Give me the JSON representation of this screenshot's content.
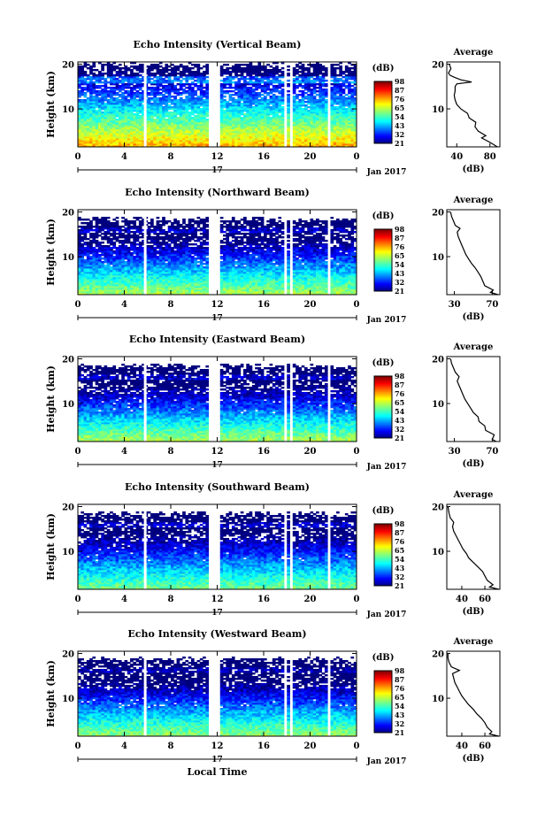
{
  "figure": {
    "date_label": "Jan 2017",
    "day_label": "17",
    "xlabel": "Local Time",
    "ylabel": "Height (km)",
    "colorbar_unit": "(dB)",
    "profile_title": "Average",
    "profile_xlabel": "(dB)"
  },
  "chart_data": [
    {
      "type": "heatmap",
      "title": "Echo Intensity (Vertical Beam)",
      "xlabel": "",
      "ylabel": "Height (km)",
      "x_ticks": [
        "0",
        "4",
        "8",
        "12",
        "16",
        "20",
        "0"
      ],
      "xlim_hours": [
        0,
        24
      ],
      "y_ticks": [
        "10",
        "20"
      ],
      "ylim_km": [
        1.5,
        20.5
      ],
      "colorbar_ticks": [
        "21",
        "32",
        "43",
        "54",
        "65",
        "76",
        "87",
        "98"
      ],
      "data_gaps_hours": [
        [
          11.3,
          12.3
        ],
        [
          17.7,
          18.0
        ],
        [
          18.3,
          18.5
        ],
        [
          21.6,
          21.8
        ]
      ],
      "thin_gaps_hours": [
        5.8
      ],
      "field": {
        "surface_db": 75,
        "decay_db_per_km": 3.5,
        "echo_top_km": 20,
        "layer_km": 16.5
      },
      "profile": {
        "x_ticks": [
          "40",
          "80"
        ],
        "xlim_db": [
          28,
          92
        ],
        "points": [
          [
            89,
            1.5
          ],
          [
            80,
            2.5
          ],
          [
            70,
            3.5
          ],
          [
            75,
            4
          ],
          [
            66,
            5
          ],
          [
            62,
            6
          ],
          [
            63,
            7
          ],
          [
            55,
            8
          ],
          [
            53,
            9
          ],
          [
            45,
            10
          ],
          [
            40,
            11
          ],
          [
            38,
            12
          ],
          [
            37,
            13
          ],
          [
            38,
            14
          ],
          [
            38,
            15
          ],
          [
            40,
            15.6
          ],
          [
            58,
            16
          ],
          [
            45,
            16.5
          ],
          [
            38,
            17
          ],
          [
            32,
            17.5
          ],
          [
            30,
            18
          ],
          [
            33,
            19
          ],
          [
            31,
            20
          ]
        ]
      }
    },
    {
      "type": "heatmap",
      "title": "Echo Intensity (Northward Beam)",
      "xlabel": "",
      "ylabel": "Height (km)",
      "x_ticks": [
        "0",
        "4",
        "8",
        "12",
        "16",
        "20",
        "0"
      ],
      "xlim_hours": [
        0,
        24
      ],
      "y_ticks": [
        "10",
        "20"
      ],
      "ylim_km": [
        1.5,
        20.5
      ],
      "colorbar_ticks": [
        "21",
        "32",
        "43",
        "54",
        "65",
        "76",
        "87",
        "98"
      ],
      "data_gaps_hours": [
        [
          11.3,
          12.3
        ],
        [
          17.7,
          18.0
        ],
        [
          18.3,
          18.5
        ],
        [
          21.6,
          21.8
        ]
      ],
      "thin_gaps_hours": [
        5.8
      ],
      "field": {
        "surface_db": 62,
        "decay_db_per_km": 3.6,
        "echo_top_km": 18.5,
        "layer_km": 16
      },
      "profile": {
        "x_ticks": [
          "30",
          "70"
        ],
        "xlim_db": [
          22,
          78
        ],
        "points": [
          [
            76,
            1.5
          ],
          [
            68,
            2
          ],
          [
            71,
            2.5
          ],
          [
            62,
            3.5
          ],
          [
            60,
            4.5
          ],
          [
            58,
            5.5
          ],
          [
            55,
            6.5
          ],
          [
            52,
            7.5
          ],
          [
            48,
            8.5
          ],
          [
            45,
            9.5
          ],
          [
            42,
            10.5
          ],
          [
            40,
            11.5
          ],
          [
            38,
            12.5
          ],
          [
            36,
            13.5
          ],
          [
            34,
            14.5
          ],
          [
            33,
            15.5
          ],
          [
            36,
            16.3
          ],
          [
            31,
            17
          ],
          [
            29,
            18
          ],
          [
            27,
            19
          ],
          [
            26,
            20
          ]
        ]
      }
    },
    {
      "type": "heatmap",
      "title": "Echo Intensity (Eastward Beam)",
      "xlabel": "",
      "ylabel": "Height (km)",
      "x_ticks": [
        "0",
        "4",
        "8",
        "12",
        "16",
        "20",
        "0"
      ],
      "xlim_hours": [
        0,
        24
      ],
      "y_ticks": [
        "10",
        "20"
      ],
      "ylim_km": [
        1.5,
        20.5
      ],
      "colorbar_ticks": [
        "21",
        "32",
        "43",
        "54",
        "65",
        "76",
        "87",
        "98"
      ],
      "data_gaps_hours": [
        [
          11.3,
          12.3
        ],
        [
          17.7,
          18.0
        ],
        [
          18.3,
          18.5
        ],
        [
          21.6,
          21.8
        ]
      ],
      "thin_gaps_hours": [
        5.8
      ],
      "field": {
        "surface_db": 62,
        "decay_db_per_km": 3.6,
        "echo_top_km": 18.5,
        "layer_km": 16
      },
      "profile": {
        "x_ticks": [
          "30",
          "70"
        ],
        "xlim_db": [
          22,
          78
        ],
        "points": [
          [
            74,
            1.5
          ],
          [
            70,
            2
          ],
          [
            72,
            3
          ],
          [
            63,
            4
          ],
          [
            62,
            5
          ],
          [
            56,
            6
          ],
          [
            55,
            7
          ],
          [
            50,
            8
          ],
          [
            47,
            9
          ],
          [
            44,
            10
          ],
          [
            41,
            11
          ],
          [
            39,
            12
          ],
          [
            37,
            13
          ],
          [
            35,
            14
          ],
          [
            33,
            15
          ],
          [
            35,
            16
          ],
          [
            31,
            17
          ],
          [
            29,
            18
          ],
          [
            27,
            19
          ],
          [
            26,
            20
          ]
        ]
      }
    },
    {
      "type": "heatmap",
      "title": "Echo Intensity (Southward Beam)",
      "xlabel": "",
      "ylabel": "Height (km)",
      "x_ticks": [
        "0",
        "4",
        "8",
        "12",
        "16",
        "20",
        "0"
      ],
      "xlim_hours": [
        0,
        24
      ],
      "y_ticks": [
        "10",
        "20"
      ],
      "ylim_km": [
        1.5,
        20.5
      ],
      "colorbar_ticks": [
        "21",
        "32",
        "43",
        "54",
        "65",
        "76",
        "87",
        "98"
      ],
      "data_gaps_hours": [
        [
          11.3,
          12.3
        ],
        [
          17.7,
          18.0
        ],
        [
          18.3,
          18.5
        ],
        [
          21.6,
          21.8
        ]
      ],
      "thin_gaps_hours": [
        5.8
      ],
      "field": {
        "surface_db": 58,
        "decay_db_per_km": 3.3,
        "echo_top_km": 18.5,
        "layer_km": 16
      },
      "profile": {
        "x_ticks": [
          "40",
          "60"
        ],
        "xlim_db": [
          27,
          73
        ],
        "points": [
          [
            72,
            1.5
          ],
          [
            64,
            2
          ],
          [
            67,
            2.5
          ],
          [
            62,
            3.5
          ],
          [
            60,
            4.5
          ],
          [
            58,
            5.5
          ],
          [
            54,
            6.5
          ],
          [
            50,
            7.5
          ],
          [
            46,
            8.5
          ],
          [
            44,
            9.5
          ],
          [
            41,
            10.5
          ],
          [
            39,
            11.5
          ],
          [
            37,
            12.5
          ],
          [
            35,
            13.5
          ],
          [
            33,
            14.5
          ],
          [
            32,
            15.5
          ],
          [
            33,
            16.5
          ],
          [
            30,
            17.5
          ],
          [
            29,
            18.5
          ],
          [
            28,
            20
          ]
        ]
      }
    },
    {
      "type": "heatmap",
      "title": "Echo Intensity (Westward Beam)",
      "xlabel": "Local Time",
      "ylabel": "Height (km)",
      "x_ticks": [
        "0",
        "4",
        "8",
        "12",
        "16",
        "20",
        "0"
      ],
      "xlim_hours": [
        0,
        24
      ],
      "y_ticks": [
        "10",
        "20"
      ],
      "ylim_km": [
        1.5,
        20.5
      ],
      "colorbar_ticks": [
        "21",
        "32",
        "43",
        "54",
        "65",
        "76",
        "87",
        "98"
      ],
      "data_gaps_hours": [
        [
          11.3,
          12.3
        ],
        [
          17.7,
          18.0
        ],
        [
          18.3,
          18.5
        ],
        [
          21.6,
          21.8
        ]
      ],
      "thin_gaps_hours": [
        5.8
      ],
      "field": {
        "surface_db": 60,
        "decay_db_per_km": 3.5,
        "echo_top_km": 18.8,
        "layer_km": 16.3
      },
      "profile": {
        "x_ticks": [
          "40",
          "60"
        ],
        "xlim_db": [
          27,
          73
        ],
        "points": [
          [
            72,
            1.5
          ],
          [
            64,
            2
          ],
          [
            66,
            2.5
          ],
          [
            62,
            3.5
          ],
          [
            60,
            4.5
          ],
          [
            57,
            5.5
          ],
          [
            53,
            6.5
          ],
          [
            50,
            7.5
          ],
          [
            46,
            8.5
          ],
          [
            43,
            9.5
          ],
          [
            40,
            10.5
          ],
          [
            38,
            11.5
          ],
          [
            36,
            12.5
          ],
          [
            34,
            13.5
          ],
          [
            33,
            14.5
          ],
          [
            32,
            15.5
          ],
          [
            38,
            16.2
          ],
          [
            31,
            17
          ],
          [
            29,
            18
          ],
          [
            28,
            19
          ],
          [
            28,
            20
          ]
        ]
      }
    }
  ]
}
